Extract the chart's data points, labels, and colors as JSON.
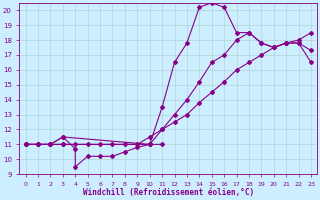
{
  "xlabel": "Windchill (Refroidissement éolien,°C)",
  "xlim": [
    -0.5,
    23.5
  ],
  "ylim": [
    9,
    20.5
  ],
  "yticks": [
    9,
    10,
    11,
    12,
    13,
    14,
    15,
    16,
    17,
    18,
    19,
    20
  ],
  "xticks": [
    0,
    1,
    2,
    3,
    4,
    5,
    6,
    7,
    8,
    9,
    10,
    11,
    12,
    13,
    14,
    15,
    16,
    17,
    18,
    19,
    20,
    21,
    22,
    23
  ],
  "background_color": "#cceeff",
  "line_color": "#880088",
  "line_a_x": [
    0,
    1,
    2,
    3,
    4,
    4,
    5,
    6,
    7,
    8,
    9,
    10,
    11
  ],
  "line_a_y": [
    11,
    11,
    11,
    11.5,
    10.7,
    9.5,
    10.2,
    10.2,
    10.2,
    10.5,
    10.8,
    11,
    11
  ],
  "line_b_x": [
    0,
    1,
    2,
    3,
    4,
    5,
    6,
    7,
    8,
    9,
    10,
    11,
    12,
    13,
    14,
    15,
    16,
    17,
    18,
    19,
    20,
    21,
    22,
    23
  ],
  "line_b_y": [
    11,
    11,
    11,
    11,
    11,
    11,
    11,
    11,
    11,
    11,
    11.5,
    12,
    12.5,
    13,
    13.8,
    14.5,
    15.2,
    16,
    16.5,
    17,
    17.5,
    17.8,
    18,
    18.5
  ],
  "line_c_x": [
    0,
    1,
    2,
    3,
    10,
    11,
    12,
    13,
    14,
    15,
    16,
    17,
    18,
    19,
    20,
    21,
    22,
    23
  ],
  "line_c_y": [
    11,
    11,
    11,
    11.5,
    11,
    13.5,
    16.5,
    17.8,
    20.2,
    20.5,
    20.2,
    18.5,
    18.5,
    17.8,
    17.5,
    17.8,
    17.8,
    16.5
  ],
  "line_d_x": [
    0,
    1,
    2,
    3,
    10,
    11,
    12,
    13,
    14,
    15,
    16,
    17,
    18,
    19,
    20,
    21,
    22,
    23
  ],
  "line_d_y": [
    11,
    11,
    11,
    11,
    11,
    12,
    13,
    14,
    15.2,
    16.5,
    17,
    18,
    18.5,
    17.8,
    17.5,
    17.8,
    17.8,
    17.3
  ]
}
